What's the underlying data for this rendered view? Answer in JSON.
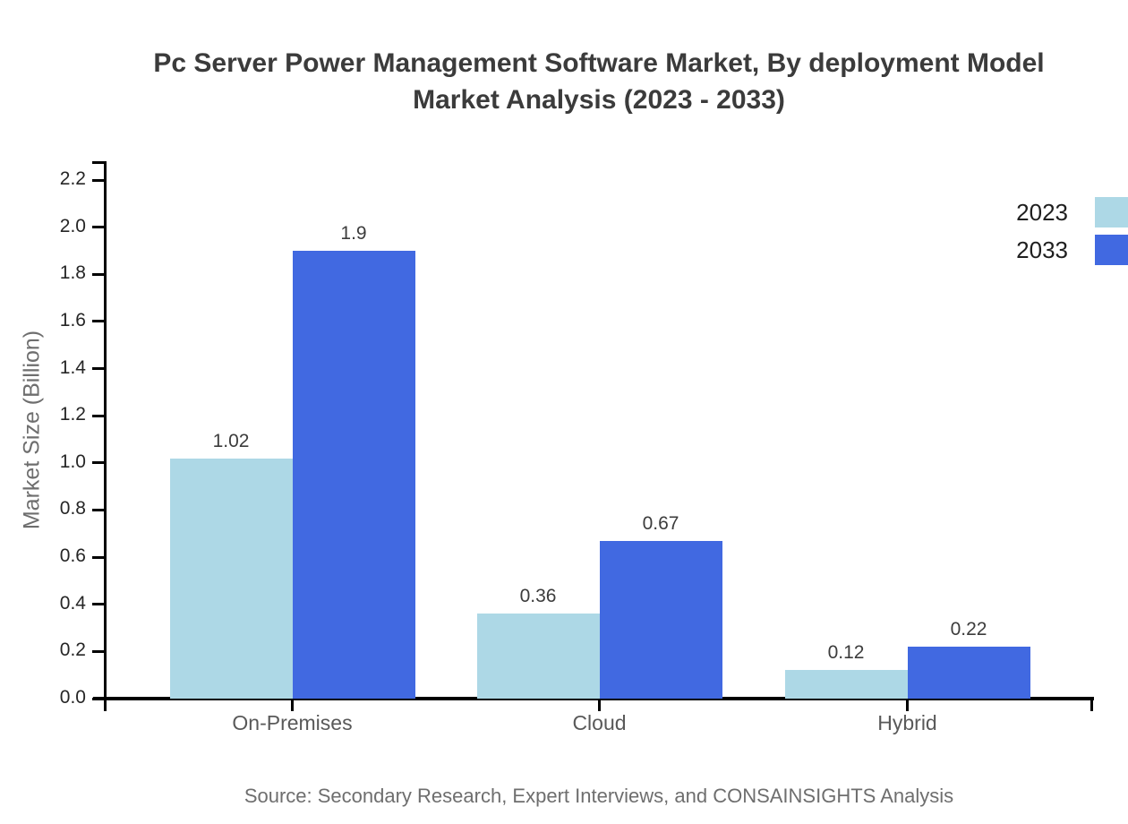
{
  "chart_data": {
    "type": "bar",
    "title": "Pc Server Power Management Software Market, By deployment Model Market Analysis (2023 - 2033)",
    "title_lines": [
      "Pc Server Power Management Software Market, By deployment Model",
      "Market Analysis (2023 - 2033)"
    ],
    "xlabel": "",
    "ylabel": "Market Size (Billion)",
    "categories": [
      "On-Premises",
      "Cloud",
      "Hybrid"
    ],
    "series": [
      {
        "name": "2023",
        "color": "#ADD8E6",
        "values": [
          1.02,
          0.36,
          0.12
        ],
        "value_labels": [
          "1.02",
          "0.36",
          "0.12"
        ]
      },
      {
        "name": "2033",
        "color": "#4169E1",
        "values": [
          1.9,
          0.67,
          0.22
        ],
        "value_labels": [
          "1.9",
          "0.67",
          "0.22"
        ]
      }
    ],
    "ylim": [
      0,
      2.2
    ],
    "ytick_step": 0.2,
    "ytick_labels": [
      "0.0",
      "0.2",
      "0.4",
      "0.6",
      "0.8",
      "1.0",
      "1.2",
      "1.4",
      "1.6",
      "1.8",
      "2.0",
      "2.2"
    ],
    "grid": false,
    "legend_position": "top-right-edge",
    "source": "Source: Secondary Research, Expert Interviews, and CONSAINSIGHTS Analysis"
  },
  "colors": {
    "series_2023": "#ADD8E6",
    "series_2033": "#4169E1",
    "title_text": "#3b3b3b",
    "axis": "#000000",
    "tick_label": "#262626",
    "category_label": "#595959",
    "muted_text": "#6e6e6e"
  }
}
